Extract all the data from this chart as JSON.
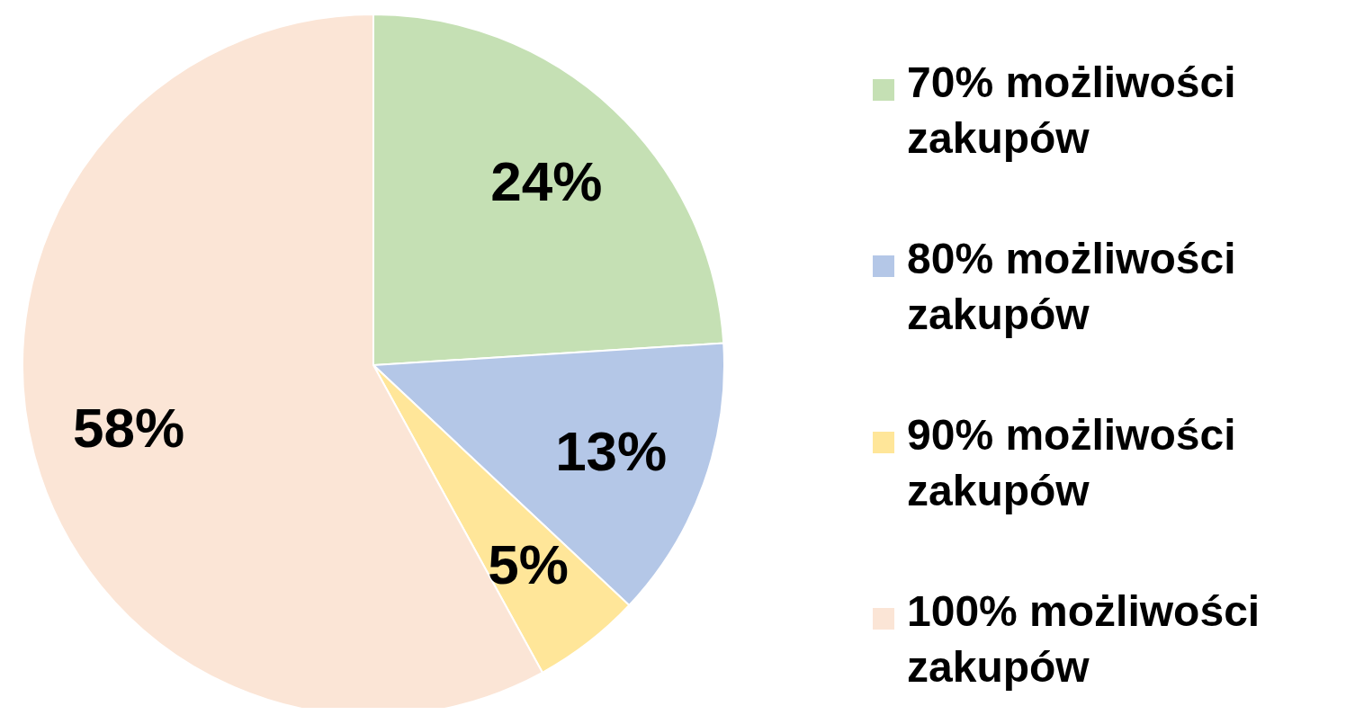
{
  "chart_data": {
    "type": "pie",
    "categories": [
      "70% możliwości zakupów",
      "80% możliwości zakupów",
      "90% możliwości zakupów",
      "100% możliwości zakupów"
    ],
    "values": [
      24,
      13,
      5,
      58
    ],
    "colors": [
      "#c5e0b4",
      "#b4c7e7",
      "#ffe699",
      "#fbe5d6"
    ],
    "value_labels": [
      "24%",
      "13%",
      "5%",
      "58%"
    ],
    "legend": "right"
  }
}
